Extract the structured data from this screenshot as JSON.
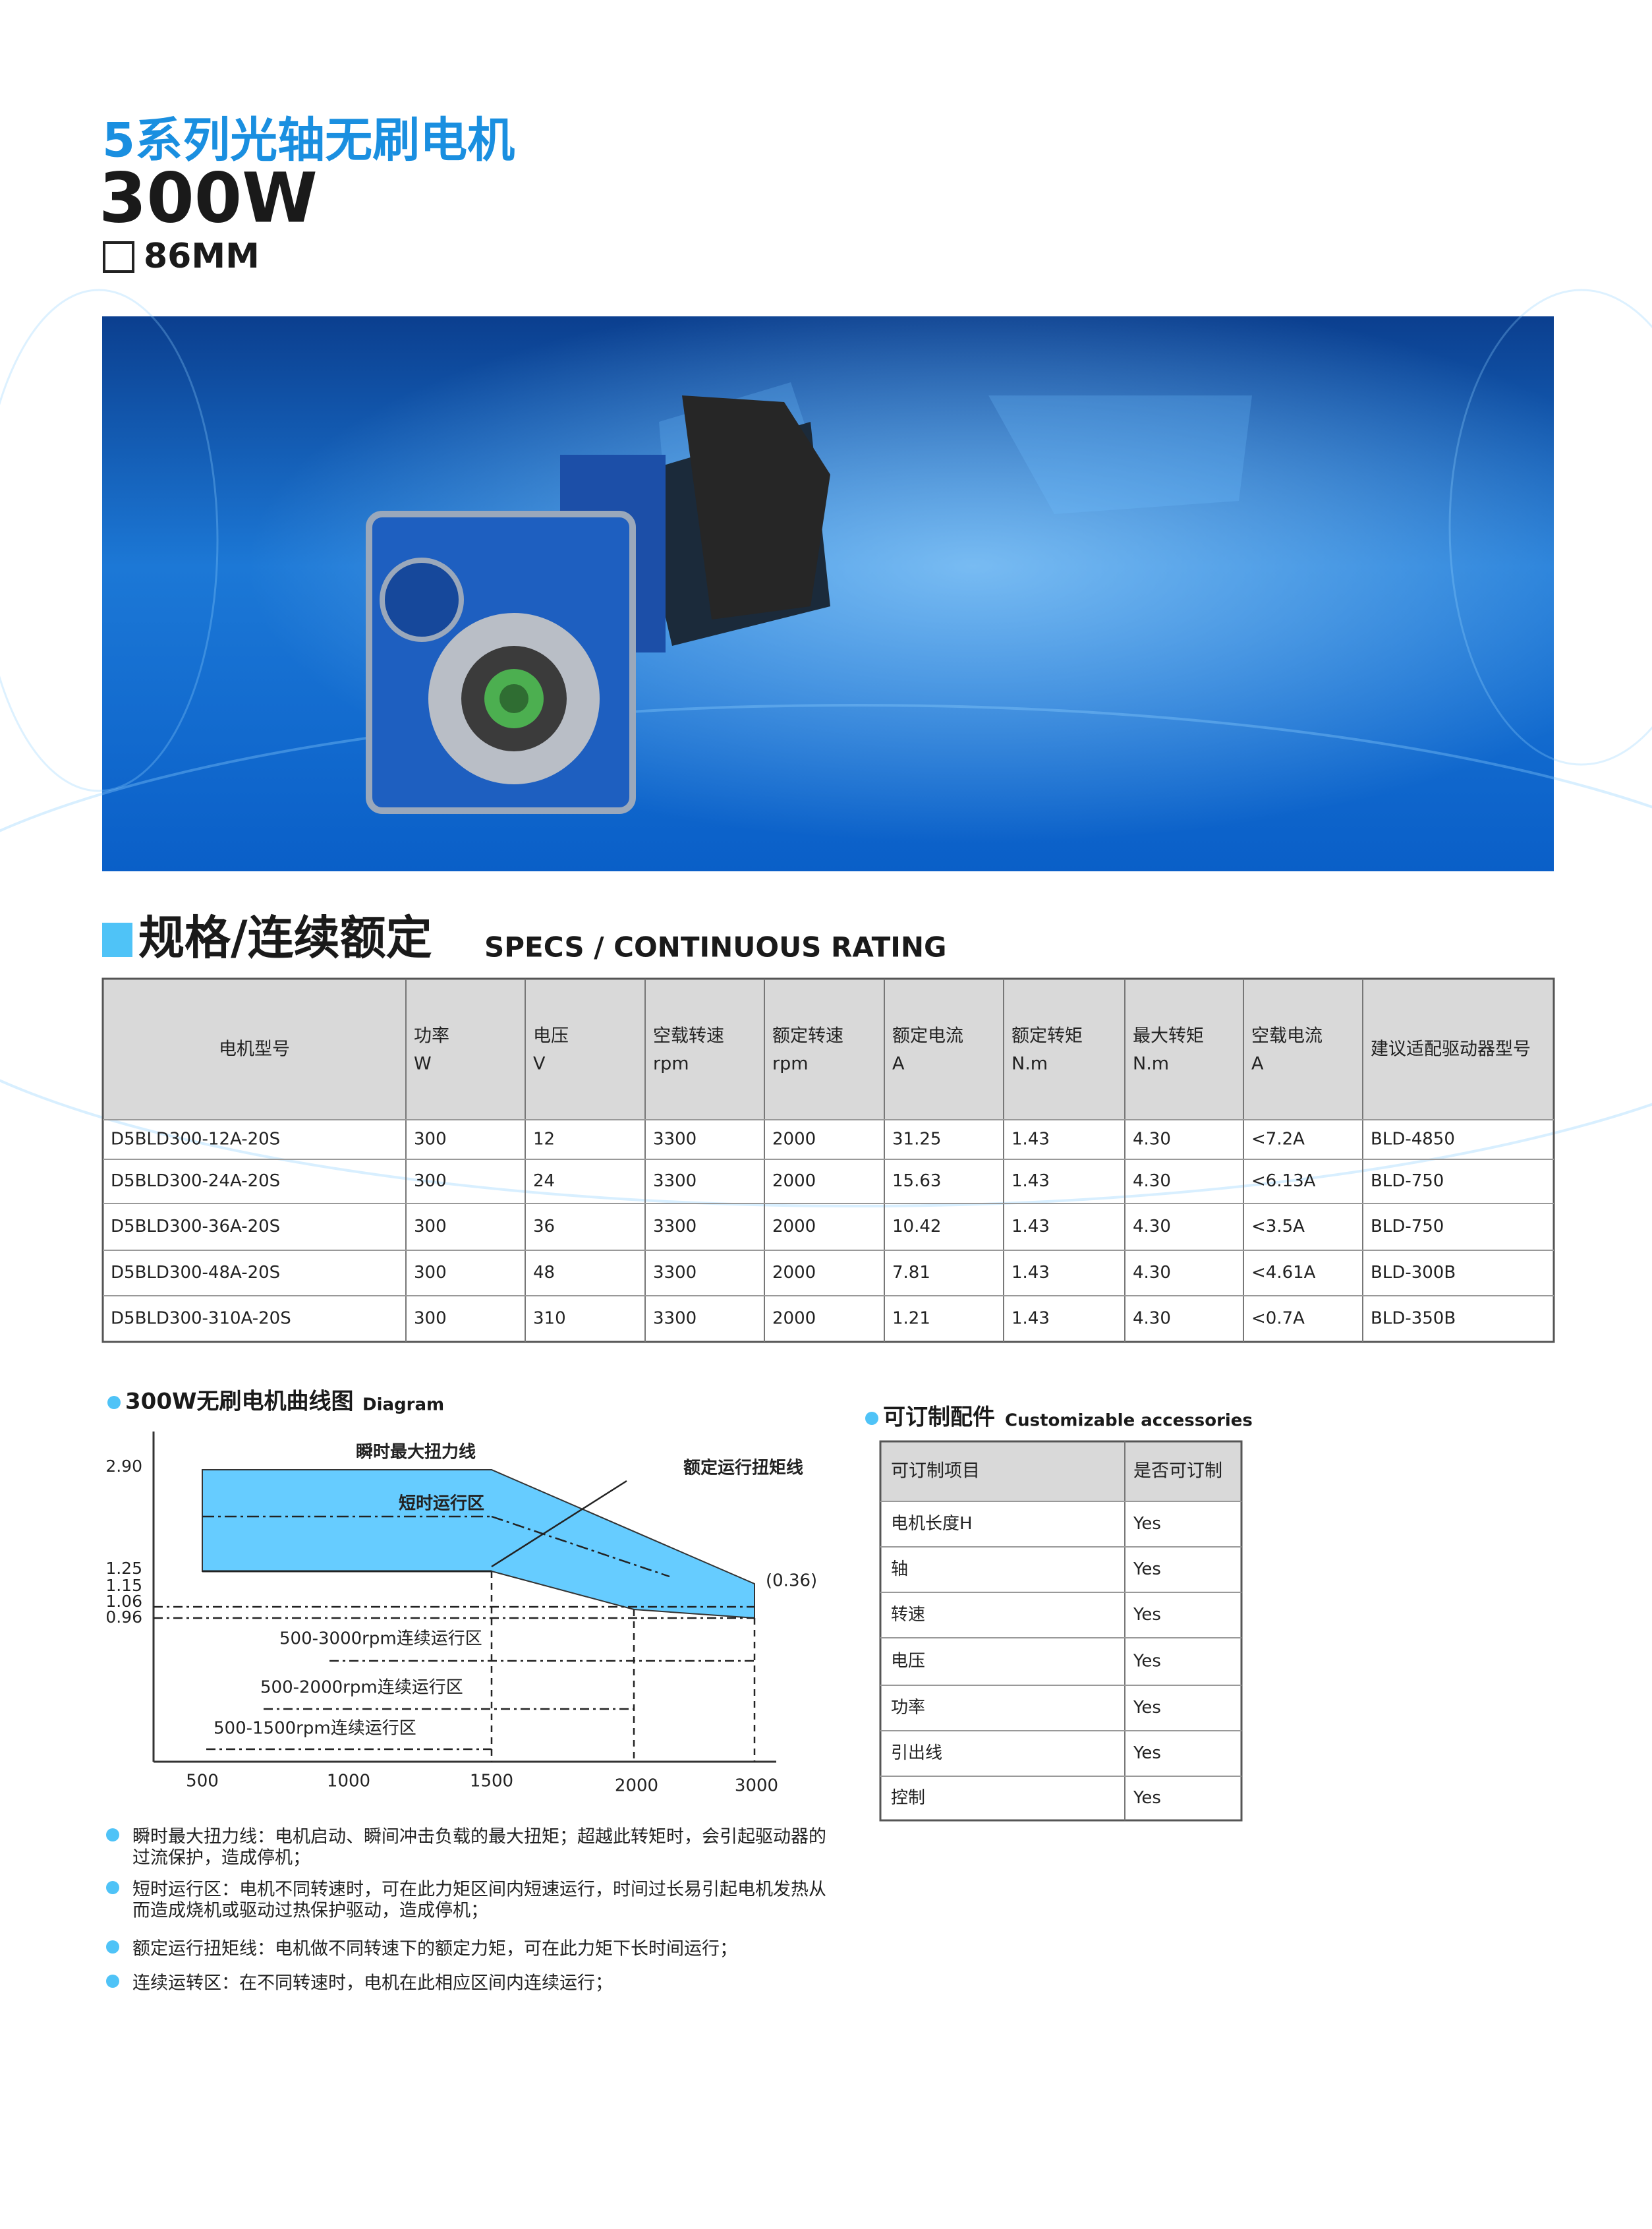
{
  "header": {
    "title": "5系列光轴无刷电机",
    "power": "300W",
    "frame_size": "86MM"
  },
  "specs": {
    "title": "规格/连续额定",
    "subtitle": "SPECS / CONTINUOUS RATING",
    "columns": [
      [
        "电机型号"
      ],
      [
        "功率",
        "W"
      ],
      [
        "电压",
        "V"
      ],
      [
        "空载转速",
        "rpm"
      ],
      [
        "额定转速",
        "rpm"
      ],
      [
        "额定电流",
        "A"
      ],
      [
        "额定转矩",
        "N.m"
      ],
      [
        "最大转矩",
        "N.m"
      ],
      [
        "空载电流",
        "A"
      ],
      [
        "建议适配驱动器型号"
      ]
    ],
    "rows": [
      [
        "D5BLD300-12A-20S",
        "300",
        "12",
        "3300",
        "2000",
        "31.25",
        "1.43",
        "4.30",
        "<7.2A",
        "BLD-4850"
      ],
      [
        "D5BLD300-24A-20S",
        "300",
        "24",
        "3300",
        "2000",
        "15.63",
        "1.43",
        "4.30",
        "<6.13A",
        "BLD-750"
      ],
      [
        "D5BLD300-36A-20S",
        "300",
        "36",
        "3300",
        "2000",
        "10.42",
        "1.43",
        "4.30",
        "<3.5A",
        "BLD-750"
      ],
      [
        "D5BLD300-48A-20S",
        "300",
        "48",
        "3300",
        "2000",
        "7.81",
        "1.43",
        "4.30",
        "<4.61A",
        "BLD-300B"
      ],
      [
        "D5BLD300-310A-20S",
        "300",
        "310",
        "3300",
        "2000",
        "1.21",
        "1.43",
        "4.30",
        "<0.7A",
        "BLD-350B"
      ]
    ]
  },
  "diagram": {
    "title": "300W无刷电机曲线图",
    "subtitle": "Diagram",
    "yticks": [
      "2.90",
      "1.25",
      "1.15",
      "1.06",
      "0.96"
    ],
    "xticks": [
      "500",
      "1000",
      "1500",
      "2000",
      "3000"
    ],
    "annotations": [
      "瞬时最大扭力线",
      "短时运行区",
      "额定运行扭矩线",
      "(0.36)",
      "500-3000rpm连续运行区",
      "500-2000rpm连续运行区",
      "500-1500rpm连续运行区"
    ],
    "notes": [
      [
        "瞬时最大扭力线：电机启动、瞬间冲击负载的最大扭矩；超越此转矩时，会引起驱动器的",
        "过流保护，造成停机；"
      ],
      [
        "短时运行区：电机不同转速时，可在此力矩区间内短速运行，时间过长易引起电机发热从",
        "而造成烧机或驱动过热保护驱动，造成停机；"
      ],
      [
        "额定运行扭矩线：电机做不同转速下的额定力矩，可在此力矩下长时间运行；"
      ],
      [
        "连续运转区：在不同转速时，电机在此相应区间内连续运行；"
      ]
    ]
  },
  "accessories": {
    "title": "可订制配件",
    "subtitle": "Customizable accessories",
    "header": [
      "可订制项目",
      "是否可订制"
    ],
    "rows": [
      [
        "电机长度H",
        "Yes"
      ],
      [
        "轴",
        "Yes"
      ],
      [
        "转速",
        "Yes"
      ],
      [
        "电压",
        "Yes"
      ],
      [
        "功率",
        "Yes"
      ],
      [
        "引出线",
        "Yes"
      ],
      [
        "控制",
        "Yes"
      ]
    ]
  }
}
